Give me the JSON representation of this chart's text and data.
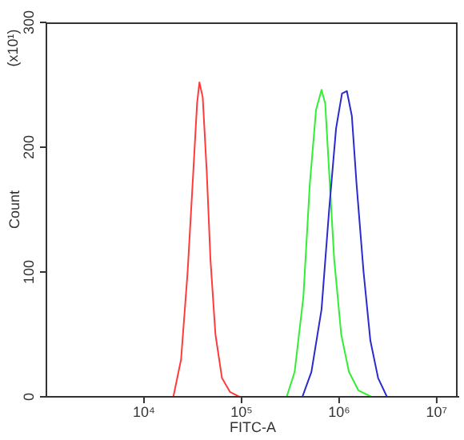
{
  "chart_data": {
    "type": "line",
    "xlabel": "FITC-A",
    "ylabel": "Count",
    "annotations": [
      "(x10¹)"
    ],
    "log": "x",
    "xlim": [
      1000,
      17000000
    ],
    "xticks": [
      {
        "value": 10000,
        "label": "10⁴"
      },
      {
        "value": 100000,
        "label": "10⁵"
      },
      {
        "value": 1000000,
        "label": "10⁶"
      },
      {
        "value": 10000000,
        "label": "10⁷"
      }
    ],
    "ylim": [
      0,
      300
    ],
    "yticks": [
      0,
      100,
      200,
      300
    ],
    "marker": "none",
    "line_style": "solid",
    "series": [
      {
        "color": "#ff3b3b",
        "x": [
          20000,
          24000,
          28000,
          32000,
          35000,
          37000,
          40000,
          44000,
          48000,
          54000,
          63000,
          76000,
          95000
        ],
        "values": [
          0,
          30,
          100,
          180,
          235,
          252,
          240,
          180,
          110,
          50,
          15,
          4,
          0
        ]
      },
      {
        "color": "#33ee33",
        "x": [
          290000,
          350000,
          430000,
          500000,
          580000,
          660000,
          720000,
          790000,
          890000,
          1050000,
          1260000,
          1580000,
          2140000
        ],
        "values": [
          0,
          20,
          80,
          170,
          230,
          246,
          235,
          180,
          110,
          50,
          20,
          5,
          0
        ]
      },
      {
        "color": "#2a2ad0",
        "x": [
          420000,
          520000,
          660000,
          790000,
          930000,
          1070000,
          1200000,
          1350000,
          1510000,
          1780000,
          2090000,
          2510000,
          3090000
        ],
        "values": [
          0,
          20,
          70,
          150,
          215,
          243,
          245,
          225,
          170,
          100,
          45,
          15,
          0
        ]
      }
    ]
  }
}
